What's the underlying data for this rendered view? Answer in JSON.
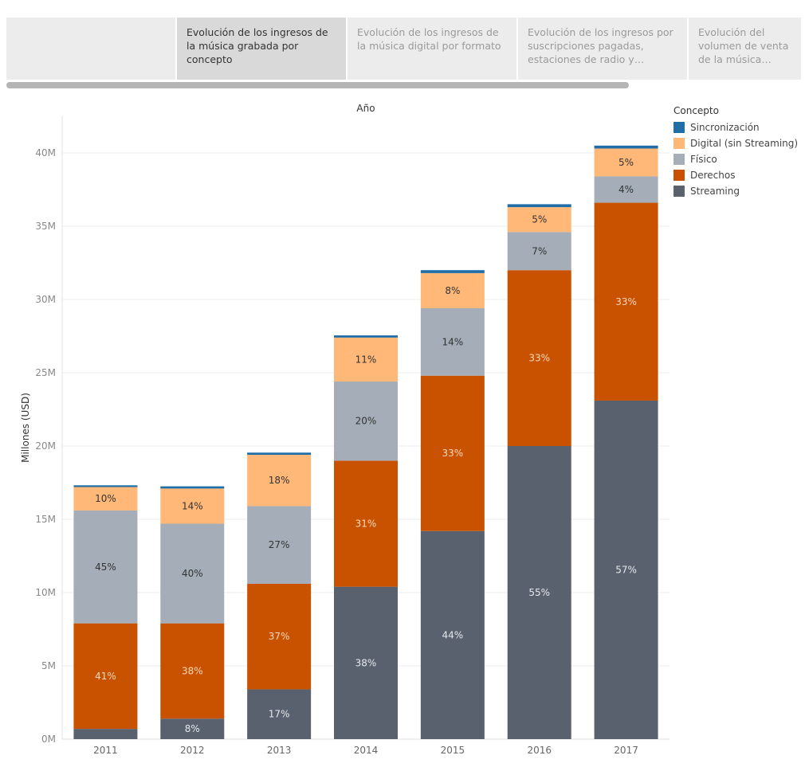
{
  "tabs": [
    {
      "label": "",
      "active": false
    },
    {
      "label": "Evolución de los ingresos de la música grabada por concepto",
      "active": true
    },
    {
      "label": "Evolución de los ingresos de la música digital por formato",
      "active": false
    },
    {
      "label": "Evolución de los ingresos por suscripciones pagadas, estaciones de radio y streaming",
      "active": false
    },
    {
      "label": "Evolución del volumen de venta de la música grabada: formatos físi..",
      "active": false
    }
  ],
  "legend": {
    "title": "Concepto",
    "items": [
      {
        "label": "Sincronización",
        "color": "#1f6ea8"
      },
      {
        "label": "Digital (sin Streaming)",
        "color": "#ffb878"
      },
      {
        "label": "Físico",
        "color": "#a4adb8"
      },
      {
        "label": "Derechos",
        "color": "#c85200"
      },
      {
        "label": "Streaming",
        "color": "#5a616e"
      }
    ]
  },
  "chart_data": {
    "type": "bar",
    "stacked": true,
    "title": "Año",
    "ylabel": "Millones (USD)",
    "xlabel": "",
    "ylim": [
      0,
      42.5
    ],
    "yticks": [
      0,
      5,
      10,
      15,
      20,
      25,
      30,
      35,
      40
    ],
    "ytick_labels": [
      "0M",
      "5M",
      "10M",
      "15M",
      "20M",
      "25M",
      "30M",
      "35M",
      "40M"
    ],
    "categories": [
      "2011",
      "2012",
      "2013",
      "2014",
      "2015",
      "2016",
      "2017"
    ],
    "series": [
      {
        "name": "Streaming",
        "color": "#5a616e",
        "values": [
          0.7,
          1.4,
          3.4,
          10.4,
          14.2,
          20.0,
          23.1
        ],
        "labels": [
          "",
          "8%",
          "17%",
          "38%",
          "44%",
          "55%",
          "57%"
        ]
      },
      {
        "name": "Derechos",
        "color": "#c85200",
        "values": [
          7.2,
          6.5,
          7.2,
          8.6,
          10.6,
          12.0,
          13.5
        ],
        "labels": [
          "41%",
          "38%",
          "37%",
          "31%",
          "33%",
          "33%",
          "33%"
        ]
      },
      {
        "name": "Físico",
        "color": "#a4adb8",
        "values": [
          7.7,
          6.8,
          5.3,
          5.4,
          4.6,
          2.6,
          1.8
        ],
        "labels": [
          "45%",
          "40%",
          "27%",
          "20%",
          "14%",
          "7%",
          "4%"
        ]
      },
      {
        "name": "Digital (sin Streaming)",
        "color": "#ffb878",
        "values": [
          1.6,
          2.4,
          3.5,
          3.0,
          2.4,
          1.7,
          1.9
        ],
        "labels": [
          "10%",
          "14%",
          "18%",
          "11%",
          "8%",
          "5%",
          "5%"
        ]
      },
      {
        "name": "Sincronización",
        "color": "#1f6ea8",
        "values": [
          0.12,
          0.15,
          0.15,
          0.15,
          0.2,
          0.2,
          0.2
        ],
        "labels": [
          "",
          "",
          "",
          "",
          "",
          "",
          ""
        ]
      }
    ],
    "grid": true
  }
}
